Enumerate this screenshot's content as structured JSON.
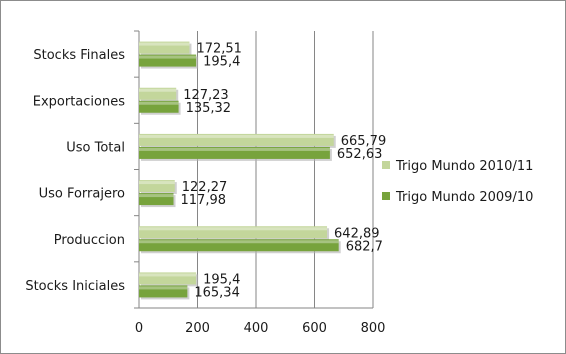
{
  "chart_data": {
    "type": "bar",
    "orientation": "horizontal",
    "categories": [
      "Stocks Finales",
      "Exportaciones",
      "Uso Total",
      "Uso Forrajero",
      "Produccion",
      "Stocks Iniciales"
    ],
    "series": [
      {
        "name": "Trigo Mundo 2010/11",
        "values": [
          172.51,
          127.23,
          665.79,
          122.27,
          642.89,
          195.4
        ],
        "labels": [
          "172,51",
          "127,23",
          "665,79",
          "122,27",
          "642,89",
          "195,4"
        ],
        "color": "#c3d69b"
      },
      {
        "name": "Trigo Mundo 2009/10",
        "values": [
          195.4,
          135.32,
          652.63,
          117.98,
          682.7,
          165.34
        ],
        "labels": [
          "195,4",
          "135,32",
          "652,63",
          "117,98",
          "682,7",
          "165,34"
        ],
        "color": "#77a33c"
      }
    ],
    "xlim": [
      0,
      800
    ],
    "xticks": [
      "0",
      "200",
      "400",
      "600",
      "800"
    ],
    "grid": true,
    "legend_position": "right"
  }
}
